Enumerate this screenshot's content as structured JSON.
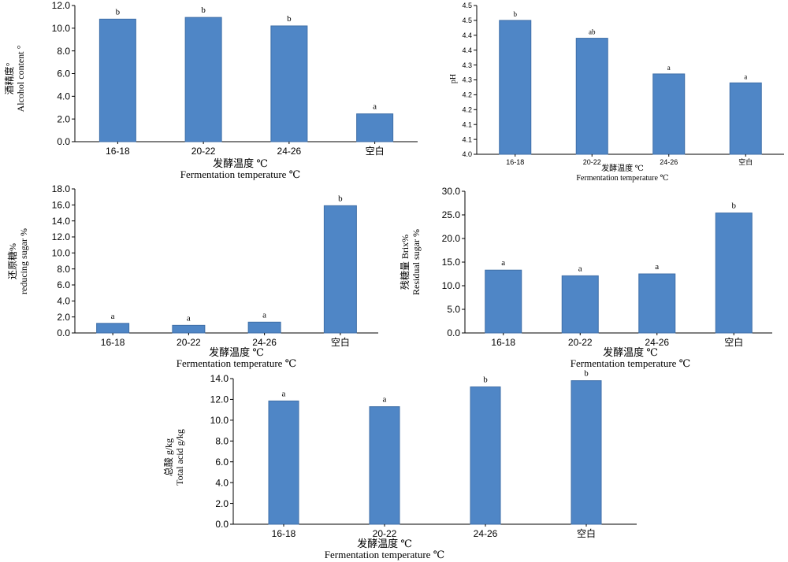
{
  "bar_color": "#4f86c6",
  "bar_stroke": "#3f6fa8",
  "chart_data": [
    {
      "type": "bar",
      "categories": [
        "16-18",
        "20-22",
        "24-26",
        "空白"
      ],
      "values": [
        10.8,
        10.95,
        10.2,
        2.45
      ],
      "labels": [
        "b",
        "b",
        "b",
        "a"
      ],
      "ylim": [
        0,
        12
      ],
      "yticks": [
        "0.0",
        "2.0",
        "4.0",
        "6.0",
        "8.0",
        "10.0",
        "12.0"
      ],
      "ylabel": [
        "酒精度°",
        "Alcohol content °"
      ],
      "xlabel": [
        "发酵温度 ℃",
        "Fermentation temperature ℃"
      ]
    },
    {
      "type": "bar",
      "categories": [
        "16-18",
        "20-22",
        "24-26",
        "空白"
      ],
      "values": [
        4.45,
        4.39,
        4.27,
        4.24
      ],
      "labels": [
        "b",
        "ab",
        "a",
        "a"
      ],
      "ylim": [
        4.0,
        4.5
      ],
      "yticks": [
        "4.0",
        "4.1",
        "4.1",
        "4.2",
        "4.2",
        "4.3",
        "4.3",
        "4.4",
        "4.4",
        "4.5",
        "4.5"
      ],
      "ylabel": [
        "pH"
      ],
      "xlabel": [
        "发酵温度 ℃",
        "Fermentation temperature ℃"
      ]
    },
    {
      "type": "bar",
      "categories": [
        "16-18",
        "20-22",
        "24-26",
        "空白"
      ],
      "values": [
        1.2,
        0.95,
        1.35,
        15.9
      ],
      "labels": [
        "a",
        "a",
        "a",
        "b"
      ],
      "ylim": [
        0,
        18
      ],
      "yticks": [
        "0.0",
        "2.0",
        "4.0",
        "6.0",
        "8.0",
        "10.0",
        "12.0",
        "14.0",
        "16.0",
        "18.0"
      ],
      "ylabel": [
        "还原糖%",
        "reducing sugar %"
      ],
      "xlabel": [
        "发酵温度 ℃",
        "Fermentation temperature ℃"
      ]
    },
    {
      "type": "bar",
      "categories": [
        "16-18",
        "20-22",
        "24-26",
        "空白"
      ],
      "values": [
        13.3,
        12.1,
        12.5,
        25.4
      ],
      "labels": [
        "a",
        "a",
        "a",
        "b"
      ],
      "ylim": [
        0,
        30
      ],
      "yticks": [
        "0.0",
        "5.0",
        "10.0",
        "15.0",
        "20.0",
        "25.0",
        "30.0"
      ],
      "ylabel": [
        "残糖量 Brix%",
        "Residual sugar %"
      ],
      "xlabel": [
        "发酵温度 ℃",
        "Fermentation temperature ℃"
      ]
    },
    {
      "type": "bar",
      "categories": [
        "16-18",
        "20-22",
        "24-26",
        "空白"
      ],
      "values": [
        11.85,
        11.3,
        13.2,
        13.8
      ],
      "labels": [
        "a",
        "a",
        "b",
        "b"
      ],
      "ylim": [
        0,
        14
      ],
      "yticks": [
        "0.0",
        "2.0",
        "4.0",
        "6.0",
        "8.0",
        "10.0",
        "12.0",
        "14.0"
      ],
      "ylabel": [
        "总酸 g/kg",
        "Total acid g/kg"
      ],
      "xlabel": [
        "发酵温度 ℃",
        "Fermentation temperature ℃"
      ]
    }
  ]
}
